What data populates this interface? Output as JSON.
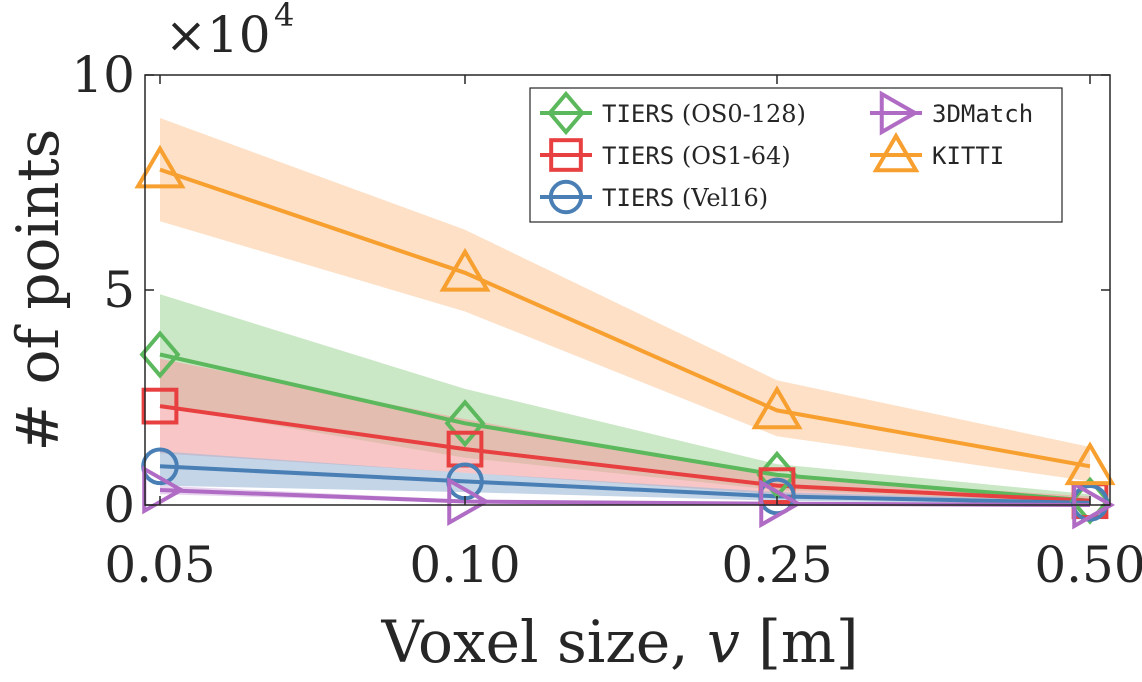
{
  "chart_data": {
    "type": "line",
    "x": [
      "0.05",
      "0.10",
      "0.25",
      "0.50"
    ],
    "xlabel_prefix": "Voxel size, ",
    "xlabel_var": "v",
    "xlabel_unit": " [m]",
    "ylabel": "# of points",
    "y_multiplier": "×10",
    "y_multiplier_exp": "4",
    "ylim": [
      0,
      10
    ],
    "yticks": [
      "0",
      "5",
      "10"
    ],
    "legend_position": "top-right",
    "series": [
      {
        "name": "TIERS",
        "sensor": "(OS0-128)",
        "marker": "diamond",
        "color": "#5cb85c",
        "band_color": "#a8d8a0",
        "values": [
          3.5,
          1.9,
          0.7,
          0.1
        ],
        "lower": [
          2.3,
          1.1,
          0.35,
          0.05
        ],
        "upper": [
          4.9,
          2.7,
          0.95,
          0.25
        ]
      },
      {
        "name": "TIERS",
        "sensor": "(OS1-64)",
        "marker": "square",
        "color": "#e84040",
        "band_color": "#f4a0a0",
        "values": [
          2.3,
          1.3,
          0.45,
          0.1
        ],
        "lower": [
          1.2,
          0.75,
          0.25,
          0.05
        ],
        "upper": [
          3.4,
          2.0,
          0.65,
          0.2
        ]
      },
      {
        "name": "TIERS",
        "sensor": "(Vel16)",
        "marker": "circle",
        "color": "#4a7fb5",
        "band_color": "#9cb9d8",
        "values": [
          0.9,
          0.55,
          0.2,
          0.05
        ],
        "lower": [
          0.45,
          0.3,
          0.1,
          0.02
        ],
        "upper": [
          1.25,
          0.75,
          0.3,
          0.1
        ]
      },
      {
        "name": "3DMatch",
        "sensor": "",
        "marker": "triangle-right",
        "color": "#b06cc4",
        "band_color": "#d9b8e4",
        "values": [
          0.35,
          0.08,
          0.03,
          0.0
        ],
        "lower": [
          0.25,
          0.05,
          0.01,
          0.0
        ],
        "upper": [
          0.45,
          0.12,
          0.05,
          0.02
        ]
      },
      {
        "name": "KITTI",
        "sensor": "",
        "marker": "triangle-up",
        "color": "#f7a030",
        "band_color": "#fccca0",
        "values": [
          7.8,
          5.4,
          2.2,
          0.9
        ],
        "lower": [
          6.6,
          4.5,
          1.6,
          0.55
        ],
        "upper": [
          9.0,
          6.4,
          2.9,
          1.35
        ]
      }
    ]
  }
}
